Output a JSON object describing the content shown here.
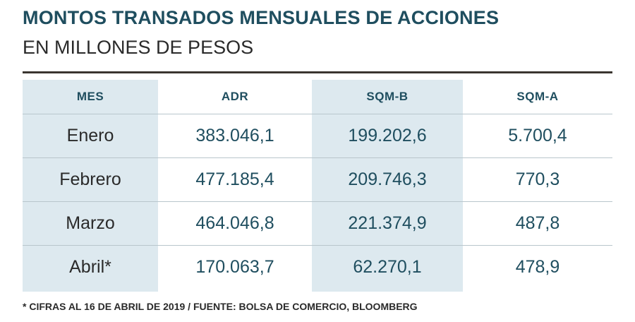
{
  "title": "MONTOS TRANSADOS MENSUALES DE ACCIONES",
  "subtitle": "EN MILLONES DE PESOS",
  "footnote": "* CIFRAS AL 16 DE ABRIL DE 2019  / FUENTE: BOLSA DE COMERCIO, BLOOMBERG",
  "colors": {
    "title": "#1f4e5f",
    "shade": "#dde9ef",
    "rule": "#3a3530"
  },
  "chart_data": {
    "type": "table",
    "title": "MONTOS TRANSADOS MENSUALES DE ACCIONES",
    "subtitle": "EN MILLONES DE PESOS",
    "columns": [
      "MES",
      "ADR",
      "SQM-B",
      "SQM-A"
    ],
    "rows": [
      [
        "Enero",
        "383.046,1",
        "199.202,6",
        "5.700,4"
      ],
      [
        "Febrero",
        "477.185,4",
        "209.746,3",
        "770,3"
      ],
      [
        "Marzo",
        "464.046,8",
        "221.374,9",
        "487,8"
      ],
      [
        "Abril*",
        "170.063,7",
        "62.270,1",
        "478,9"
      ]
    ]
  }
}
